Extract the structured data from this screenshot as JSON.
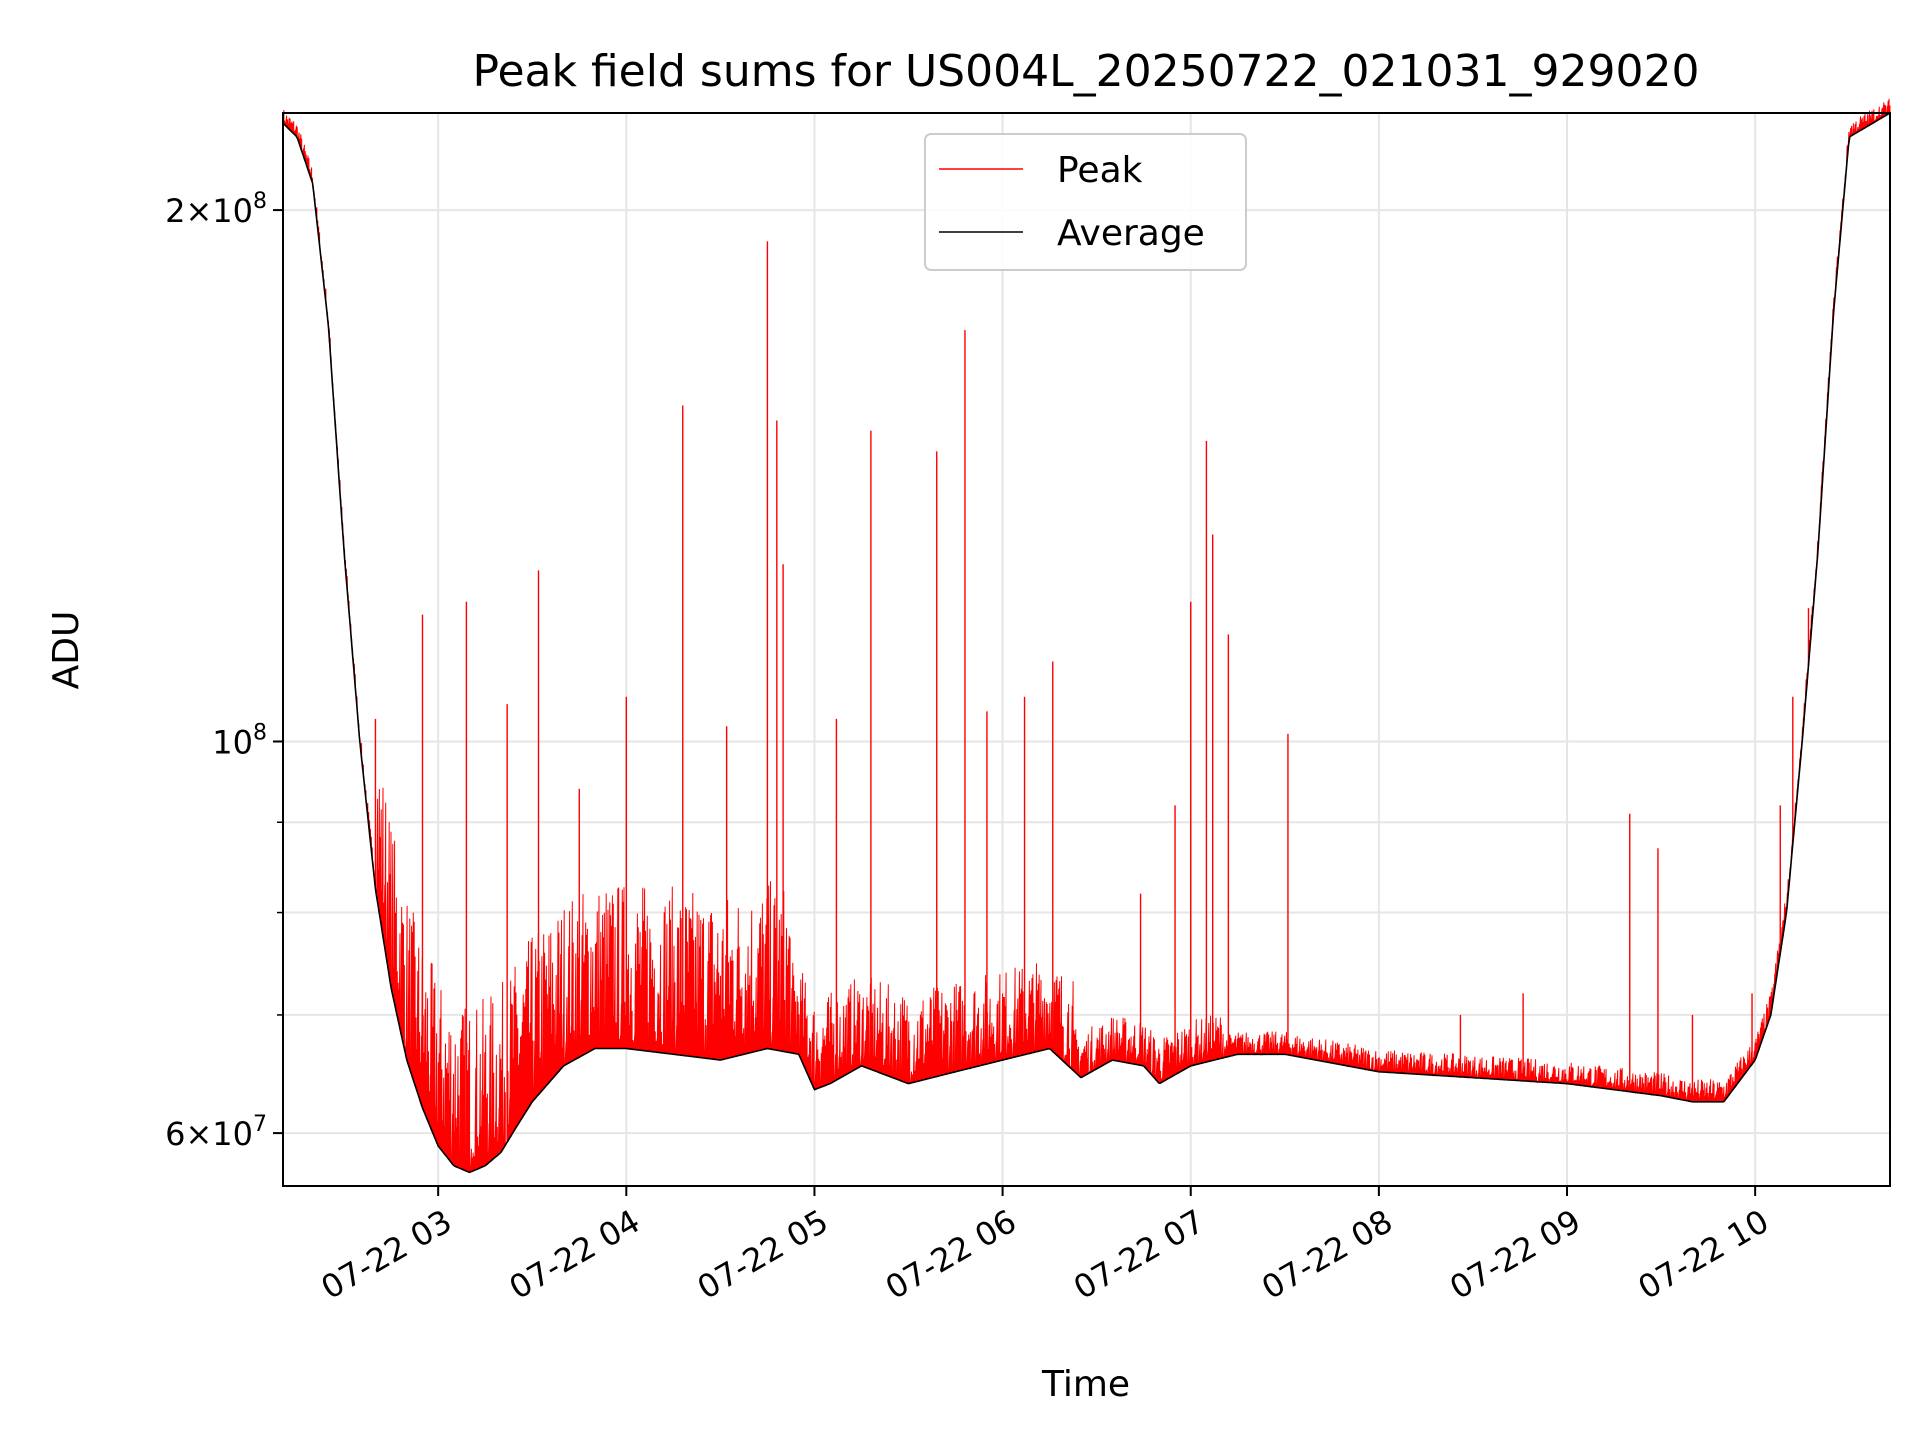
{
  "chart_data": {
    "type": "line",
    "title": "Peak field sums for US004L_20250722_021031_929020",
    "xlabel": "Time",
    "ylabel": "ADU",
    "yscale": "log",
    "ylim": [
      56000000,
      227000000
    ],
    "xlim": [
      "2025-07-22T02:10:31",
      "2025-07-22T10:43:00"
    ],
    "grid": true,
    "legend_position": "top-center",
    "x_ticks": [
      {
        "value": "2025-07-22T03:00",
        "label": "07-22 03"
      },
      {
        "value": "2025-07-22T04:00",
        "label": "07-22 04"
      },
      {
        "value": "2025-07-22T05:00",
        "label": "07-22 05"
      },
      {
        "value": "2025-07-22T06:00",
        "label": "07-22 06"
      },
      {
        "value": "2025-07-22T07:00",
        "label": "07-22 07"
      },
      {
        "value": "2025-07-22T08:00",
        "label": "07-22 08"
      },
      {
        "value": "2025-07-22T09:00",
        "label": "07-22 09"
      },
      {
        "value": "2025-07-22T10:00",
        "label": "07-22 10"
      }
    ],
    "y_ticks_major": [
      {
        "value": 60000000,
        "label_mant": "6",
        "label_exp": "7"
      },
      {
        "value": 100000000,
        "label_mant": "",
        "label_exp": "8"
      },
      {
        "value": 200000000,
        "label_mant": "2",
        "label_exp": "8"
      }
    ],
    "y_ticks_minor": [
      70000000,
      80000000,
      90000000
    ],
    "series": [
      {
        "name": "Average",
        "color": "#000000",
        "x": [
          "2025-07-22T02:10:31",
          "2025-07-22T02:15",
          "2025-07-22T02:20",
          "2025-07-22T02:25",
          "2025-07-22T02:30",
          "2025-07-22T02:35",
          "2025-07-22T02:40",
          "2025-07-22T02:45",
          "2025-07-22T02:50",
          "2025-07-22T02:55",
          "2025-07-22T03:00",
          "2025-07-22T03:05",
          "2025-07-22T03:10",
          "2025-07-22T03:15",
          "2025-07-22T03:20",
          "2025-07-22T03:25",
          "2025-07-22T03:30",
          "2025-07-22T03:40",
          "2025-07-22T03:50",
          "2025-07-22T04:00",
          "2025-07-22T04:15",
          "2025-07-22T04:30",
          "2025-07-22T04:45",
          "2025-07-22T04:55",
          "2025-07-22T05:00",
          "2025-07-22T05:05",
          "2025-07-22T05:15",
          "2025-07-22T05:30",
          "2025-07-22T05:45",
          "2025-07-22T06:00",
          "2025-07-22T06:15",
          "2025-07-22T06:25",
          "2025-07-22T06:35",
          "2025-07-22T06:45",
          "2025-07-22T06:50",
          "2025-07-22T07:00",
          "2025-07-22T07:15",
          "2025-07-22T07:30",
          "2025-07-22T08:00",
          "2025-07-22T08:30",
          "2025-07-22T09:00",
          "2025-07-22T09:30",
          "2025-07-22T09:40",
          "2025-07-22T09:50",
          "2025-07-22T10:00",
          "2025-07-22T10:05",
          "2025-07-22T10:10",
          "2025-07-22T10:15",
          "2025-07-22T10:20",
          "2025-07-22T10:25",
          "2025-07-22T10:30",
          "2025-07-22T10:43"
        ],
        "y": [
          224000000,
          220000000,
          207000000,
          172000000,
          128000000,
          100000000,
          82500000,
          72500000,
          66000000,
          62000000,
          59000000,
          57500000,
          57000000,
          57500000,
          58500000,
          60500000,
          62500000,
          65500000,
          67000000,
          67000000,
          66500000,
          66000000,
          67000000,
          66500000,
          63500000,
          64000000,
          65500000,
          64000000,
          65000000,
          66000000,
          67000000,
          64500000,
          66000000,
          65500000,
          64000000,
          65500000,
          66500000,
          66500000,
          65000000,
          64500000,
          64000000,
          63000000,
          62500000,
          62500000,
          66000000,
          70000000,
          80000000,
          100000000,
          128000000,
          175000000,
          220000000,
          227000000
        ]
      },
      {
        "name": "Peak",
        "color": "#ff0000",
        "spikes": [
          {
            "x": "2025-07-22T02:40",
            "y": 103000000
          },
          {
            "x": "2025-07-22T02:55",
            "y": 118000000
          },
          {
            "x": "2025-07-22T03:09",
            "y": 120000000
          },
          {
            "x": "2025-07-22T03:22",
            "y": 105000000
          },
          {
            "x": "2025-07-22T03:32",
            "y": 125000000
          },
          {
            "x": "2025-07-22T03:45",
            "y": 94000000
          },
          {
            "x": "2025-07-22T04:00",
            "y": 106000000
          },
          {
            "x": "2025-07-22T04:18",
            "y": 155000000
          },
          {
            "x": "2025-07-22T04:32",
            "y": 102000000
          },
          {
            "x": "2025-07-22T04:45",
            "y": 192000000
          },
          {
            "x": "2025-07-22T04:48",
            "y": 152000000
          },
          {
            "x": "2025-07-22T04:50",
            "y": 126000000
          },
          {
            "x": "2025-07-22T05:07",
            "y": 103000000
          },
          {
            "x": "2025-07-22T05:18",
            "y": 150000000
          },
          {
            "x": "2025-07-22T05:39",
            "y": 146000000
          },
          {
            "x": "2025-07-22T05:48",
            "y": 171000000
          },
          {
            "x": "2025-07-22T05:55",
            "y": 104000000
          },
          {
            "x": "2025-07-22T06:07",
            "y": 106000000
          },
          {
            "x": "2025-07-22T06:16",
            "y": 111000000
          },
          {
            "x": "2025-07-22T06:44",
            "y": 82000000
          },
          {
            "x": "2025-07-22T06:55",
            "y": 92000000
          },
          {
            "x": "2025-07-22T07:00",
            "y": 120000000
          },
          {
            "x": "2025-07-22T07:05",
            "y": 148000000
          },
          {
            "x": "2025-07-22T07:07",
            "y": 131000000
          },
          {
            "x": "2025-07-22T07:12",
            "y": 115000000
          },
          {
            "x": "2025-07-22T07:31",
            "y": 101000000
          },
          {
            "x": "2025-07-22T08:26",
            "y": 70000000
          },
          {
            "x": "2025-07-22T08:46",
            "y": 72000000
          },
          {
            "x": "2025-07-22T09:20",
            "y": 91000000
          },
          {
            "x": "2025-07-22T09:29",
            "y": 87000000
          },
          {
            "x": "2025-07-22T09:40",
            "y": 70000000
          },
          {
            "x": "2025-07-22T09:59",
            "y": 72000000
          },
          {
            "x": "2025-07-22T10:08",
            "y": 92000000
          },
          {
            "x": "2025-07-22T10:12",
            "y": 106000000
          },
          {
            "x": "2025-07-22T10:17",
            "y": 119000000
          }
        ]
      }
    ]
  }
}
